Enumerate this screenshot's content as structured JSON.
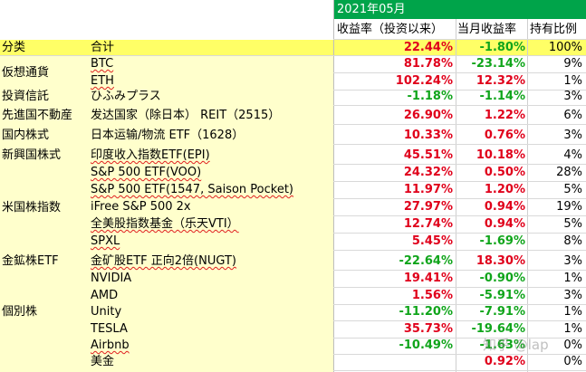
{
  "header": {
    "month": "2021年05月",
    "col_return": "收益率（投资以来）",
    "col_month": "当月收益率",
    "col_share": "持有比例"
  },
  "summary": {
    "category": "分类",
    "name": "合计",
    "return": "22.44%",
    "month": "-1.80%",
    "share": "100%"
  },
  "categories": [
    {
      "label": "仮想通貨"
    },
    {
      "label": "投資信託"
    },
    {
      "label": "先進国不動産"
    },
    {
      "label": "国内株式"
    },
    {
      "label": "新興国株式"
    },
    {
      "label": "米国株指数"
    },
    {
      "label": "金鉱株ETF"
    },
    {
      "label": "個別株"
    }
  ],
  "rows": [
    {
      "name": "BTC",
      "return": "81.78%",
      "month": "-23.14%",
      "share": "9%"
    },
    {
      "name": "ETH",
      "return": "102.24%",
      "month": "12.32%",
      "share": "1%"
    },
    {
      "name": "ひふみプラス",
      "return": "-1.18%",
      "month": "-1.14%",
      "share": "3%"
    },
    {
      "name": "发达国家（除日本） REIT（2515）",
      "return": "26.90%",
      "month": "1.22%",
      "share": "6%"
    },
    {
      "name": "日本运输/物流 ETF（1628）",
      "return": "10.33%",
      "month": "0.76%",
      "share": "3%"
    },
    {
      "name": "印度收入指数ETF(EPI)",
      "return": "45.51%",
      "month": "10.18%",
      "share": "4%"
    },
    {
      "name": "S&P 500 ETF(VOO)",
      "return": "24.32%",
      "month": "0.50%",
      "share": "28%"
    },
    {
      "name": "S&P 500 ETF(1547, Saison Pocket)",
      "return": "11.97%",
      "month": "1.20%",
      "share": "5%"
    },
    {
      "name": "iFree S&P 500 2x",
      "return": "27.97%",
      "month": "0.94%",
      "share": "19%"
    },
    {
      "name": "全美股指数基金（乐天VTI）",
      "return": "12.74%",
      "month": "0.94%",
      "share": "5%"
    },
    {
      "name": "SPXL",
      "return": "5.45%",
      "month": "-1.69%",
      "share": "8%"
    },
    {
      "name": "金矿股ETF 正向2倍(NUGT)",
      "return": "-22.64%",
      "month": "18.30%",
      "share": "3%"
    },
    {
      "name": "NVIDIA",
      "return": "19.41%",
      "month": "-0.90%",
      "share": "1%"
    },
    {
      "name": "AMD",
      "return": "1.56%",
      "month": "-5.91%",
      "share": "3%"
    },
    {
      "name": "Unity",
      "return": "-11.20%",
      "month": "-7.91%",
      "share": "1%"
    },
    {
      "name": "TESLA",
      "return": "35.73%",
      "month": "-19.64%",
      "share": "1%"
    },
    {
      "name": "Airbnb",
      "return": "-10.49%",
      "month": "-1.63%",
      "share": "0%"
    },
    {
      "name": "美金",
      "return": "",
      "month": "0.92%",
      "share": "0%"
    }
  ],
  "watermark": "知乎 @lap",
  "colors": {
    "red": "#e0001b",
    "green": "#10a51b",
    "header_green": "#00a44a",
    "yellow": "#ffff66",
    "light_yellow": "#ffffcc"
  }
}
